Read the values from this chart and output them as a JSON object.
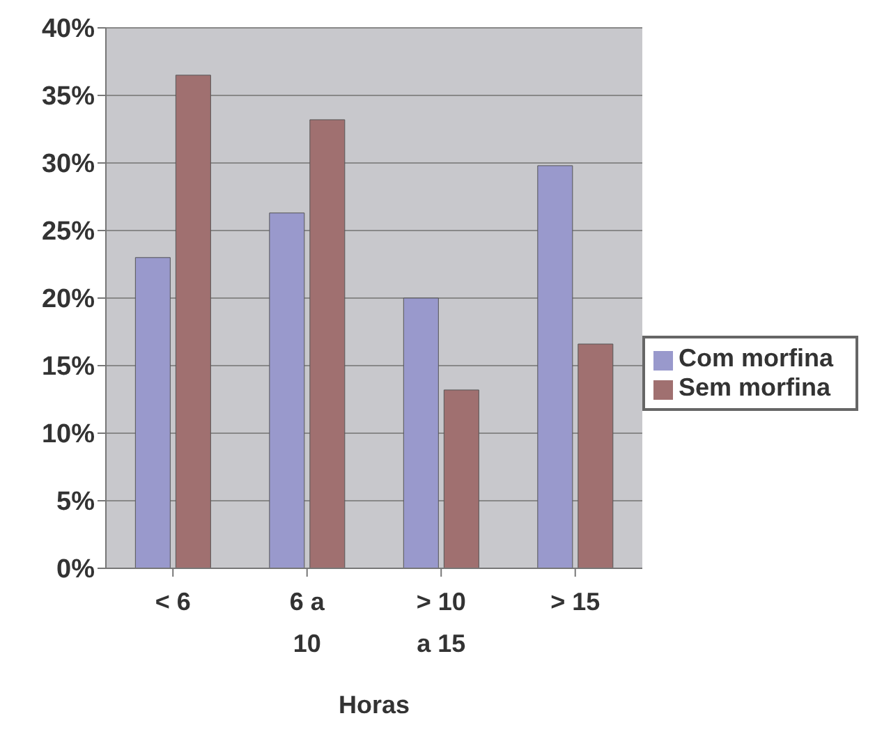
{
  "chart_data": {
    "type": "bar",
    "xlabel": "Horas",
    "categories": [
      "< 6",
      "6 a 10",
      "> 10 a 15",
      "> 15"
    ],
    "series": [
      {
        "name": "Com morfina",
        "color": "#9999cc",
        "values": [
          23,
          26.3,
          20,
          29.8
        ]
      },
      {
        "name": "Sem morfina",
        "color": "#a07070",
        "values": [
          36.5,
          33.2,
          13.2,
          16.6
        ]
      }
    ],
    "ylim": [
      0,
      40
    ],
    "yticks": [
      {
        "value": 0,
        "label": "0%"
      },
      {
        "value": 5,
        "label": "5%"
      },
      {
        "value": 10,
        "label": "10%"
      },
      {
        "value": 15,
        "label": "15%"
      },
      {
        "value": 20,
        "label": "20%"
      },
      {
        "value": 25,
        "label": "25%"
      },
      {
        "value": 30,
        "label": "30%"
      },
      {
        "value": 35,
        "label": "35%"
      },
      {
        "value": 40,
        "label": "40%"
      }
    ],
    "grid": "y",
    "legend": "right"
  }
}
